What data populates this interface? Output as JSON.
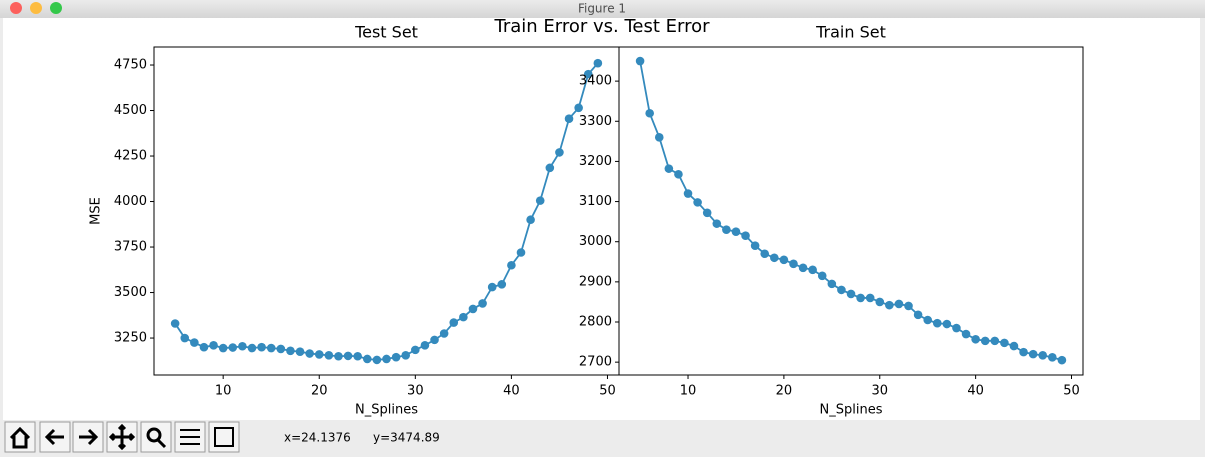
{
  "window_title": "Figure 1",
  "suptitle": "Train Error vs. Test Error",
  "status": {
    "x": "x=24.1376",
    "y": "y=3474.89"
  },
  "chart_data": [
    {
      "type": "line",
      "title": "Test Set",
      "x_label": "N_Splines",
      "y_label": "MSE",
      "color": "#348abd",
      "markers": true,
      "x": [
        5,
        6,
        7,
        8,
        9,
        10,
        11,
        12,
        13,
        14,
        15,
        16,
        17,
        18,
        19,
        20,
        21,
        22,
        23,
        24,
        25,
        26,
        27,
        28,
        29,
        30,
        31,
        32,
        33,
        34,
        35,
        36,
        37,
        38,
        39,
        40,
        41,
        42,
        43,
        44,
        45,
        46,
        47,
        48,
        49
      ],
      "values": [
        3330,
        3250,
        3225,
        3200,
        3210,
        3195,
        3198,
        3205,
        3195,
        3200,
        3195,
        3190,
        3180,
        3175,
        3165,
        3160,
        3155,
        3150,
        3152,
        3150,
        3135,
        3130,
        3135,
        3145,
        3155,
        3185,
        3210,
        3240,
        3275,
        3335,
        3365,
        3410,
        3440,
        3530,
        3545,
        3650,
        3720,
        3900,
        4005,
        4185,
        4270,
        4455,
        4515,
        4700,
        4760
      ],
      "xlim": [
        2.8,
        51.2
      ],
      "ylim": [
        3047,
        4849
      ],
      "xticks": [
        10,
        20,
        30,
        40,
        50
      ],
      "yticks": [
        3250,
        3500,
        3750,
        4000,
        4250,
        4500,
        4750
      ]
    },
    {
      "type": "line",
      "title": "Train Set",
      "x_label": "N_Splines",
      "color": "#348abd",
      "markers": true,
      "x": [
        5,
        6,
        7,
        8,
        9,
        10,
        11,
        12,
        13,
        14,
        15,
        16,
        17,
        18,
        19,
        20,
        21,
        22,
        23,
        24,
        25,
        26,
        27,
        28,
        29,
        30,
        31,
        32,
        33,
        34,
        35,
        36,
        37,
        38,
        39,
        40,
        41,
        42,
        43,
        44,
        45,
        46,
        47,
        48,
        49
      ],
      "values": [
        3450,
        3320,
        3260,
        3182,
        3168,
        3120,
        3098,
        3072,
        3045,
        3030,
        3025,
        3015,
        2990,
        2970,
        2960,
        2955,
        2945,
        2935,
        2930,
        2915,
        2895,
        2880,
        2870,
        2860,
        2860,
        2850,
        2842,
        2845,
        2840,
        2818,
        2805,
        2797,
        2795,
        2785,
        2770,
        2757,
        2753,
        2753,
        2748,
        2740,
        2725,
        2720,
        2717,
        2712,
        2705
      ],
      "xlim": [
        2.8,
        51.2
      ],
      "ylim": [
        2668,
        3485
      ],
      "xticks": [
        10,
        20,
        30,
        40,
        50
      ],
      "yticks": [
        2700,
        2800,
        2900,
        3000,
        3100,
        3200,
        3300,
        3400
      ]
    }
  ]
}
